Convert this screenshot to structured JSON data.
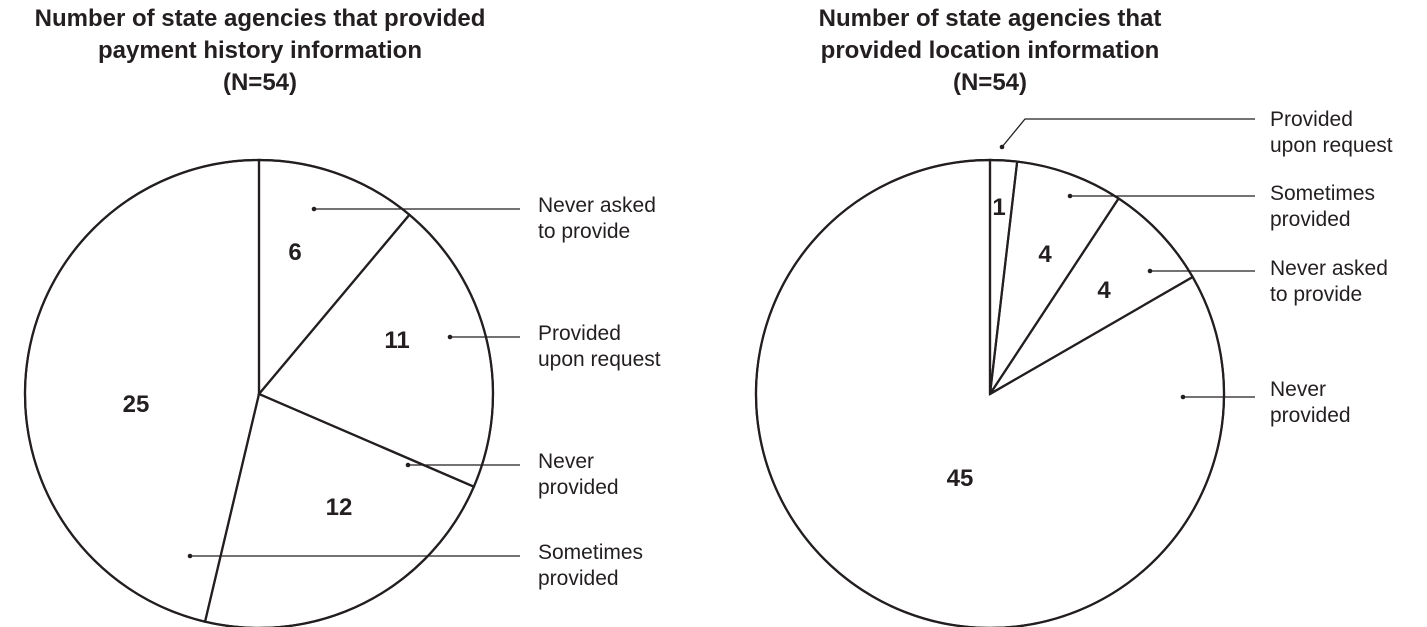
{
  "chart_data": [
    {
      "type": "pie",
      "title": [
        "Number of state agencies that provided",
        "payment history information",
        "(N=54)"
      ],
      "slices": [
        {
          "label": [
            "Never asked",
            "to provide"
          ],
          "value": 6
        },
        {
          "label": [
            "Provided",
            "upon request"
          ],
          "value": 11
        },
        {
          "label": [
            "Never",
            "provided"
          ],
          "value": 12
        },
        {
          "label": [
            "Sometimes",
            "provided"
          ],
          "value": 25
        }
      ],
      "total": 54
    },
    {
      "type": "pie",
      "title": [
        "Number of state agencies that",
        "provided location information",
        "(N=54)"
      ],
      "slices": [
        {
          "label": [
            "Provided",
            "upon request"
          ],
          "value": 1
        },
        {
          "label": [
            "Sometimes",
            "provided"
          ],
          "value": 4
        },
        {
          "label": [
            "Never asked",
            "to provide"
          ],
          "value": 4
        },
        {
          "label": [
            "Never",
            "provided"
          ],
          "value": 45
        }
      ],
      "total": 54
    }
  ]
}
